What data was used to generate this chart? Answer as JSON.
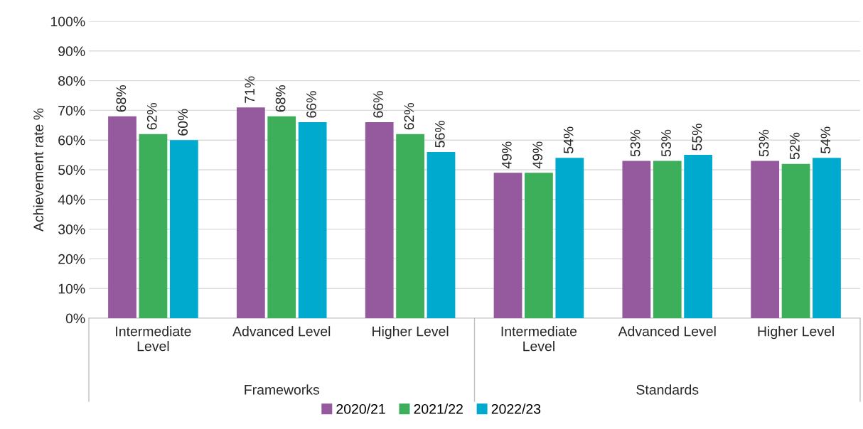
{
  "chart_data": {
    "type": "bar",
    "ylabel": "Achievement rate %",
    "categories": [
      "Intermediate\nLevel",
      "Advanced Level",
      "Higher Level",
      "Intermediate\nLevel",
      "Advanced Level",
      "Higher Level"
    ],
    "series": [
      {
        "name": "2020/21",
        "color": "#955a9e",
        "values": [
          68,
          71,
          66,
          49,
          53,
          53
        ],
        "value_labels": [
          "68%",
          "71%",
          "66%",
          "49%",
          "53%",
          "53%"
        ]
      },
      {
        "name": "2021/22",
        "color": "#3daf5b",
        "values": [
          62,
          68,
          62,
          49,
          53,
          52
        ],
        "value_labels": [
          "62%",
          "68%",
          "62%",
          "49%",
          "53%",
          "52%"
        ]
      },
      {
        "name": "2022/23",
        "color": "#00a9ce",
        "values": [
          60,
          66,
          56,
          54,
          55,
          54
        ],
        "value_labels": [
          "60%",
          "66%",
          "56%",
          "54%",
          "55%",
          "54%"
        ]
      }
    ],
    "annotations": [
      "Frameworks",
      "Standards"
    ],
    "ylim": [
      0,
      100
    ],
    "yticks": [
      {
        "value": 0,
        "label": "0%"
      },
      {
        "value": 10,
        "label": "10%"
      },
      {
        "value": 20,
        "label": "20%"
      },
      {
        "value": 30,
        "label": "30%"
      },
      {
        "value": 40,
        "label": "40%"
      },
      {
        "value": 50,
        "label": "50%"
      },
      {
        "value": 60,
        "label": "60%"
      },
      {
        "value": 70,
        "label": "70%"
      },
      {
        "value": 80,
        "label": "80%"
      },
      {
        "value": 90,
        "label": "90%"
      },
      {
        "value": 100,
        "label": "100%"
      }
    ],
    "grid": "y",
    "legend": "bottom"
  }
}
